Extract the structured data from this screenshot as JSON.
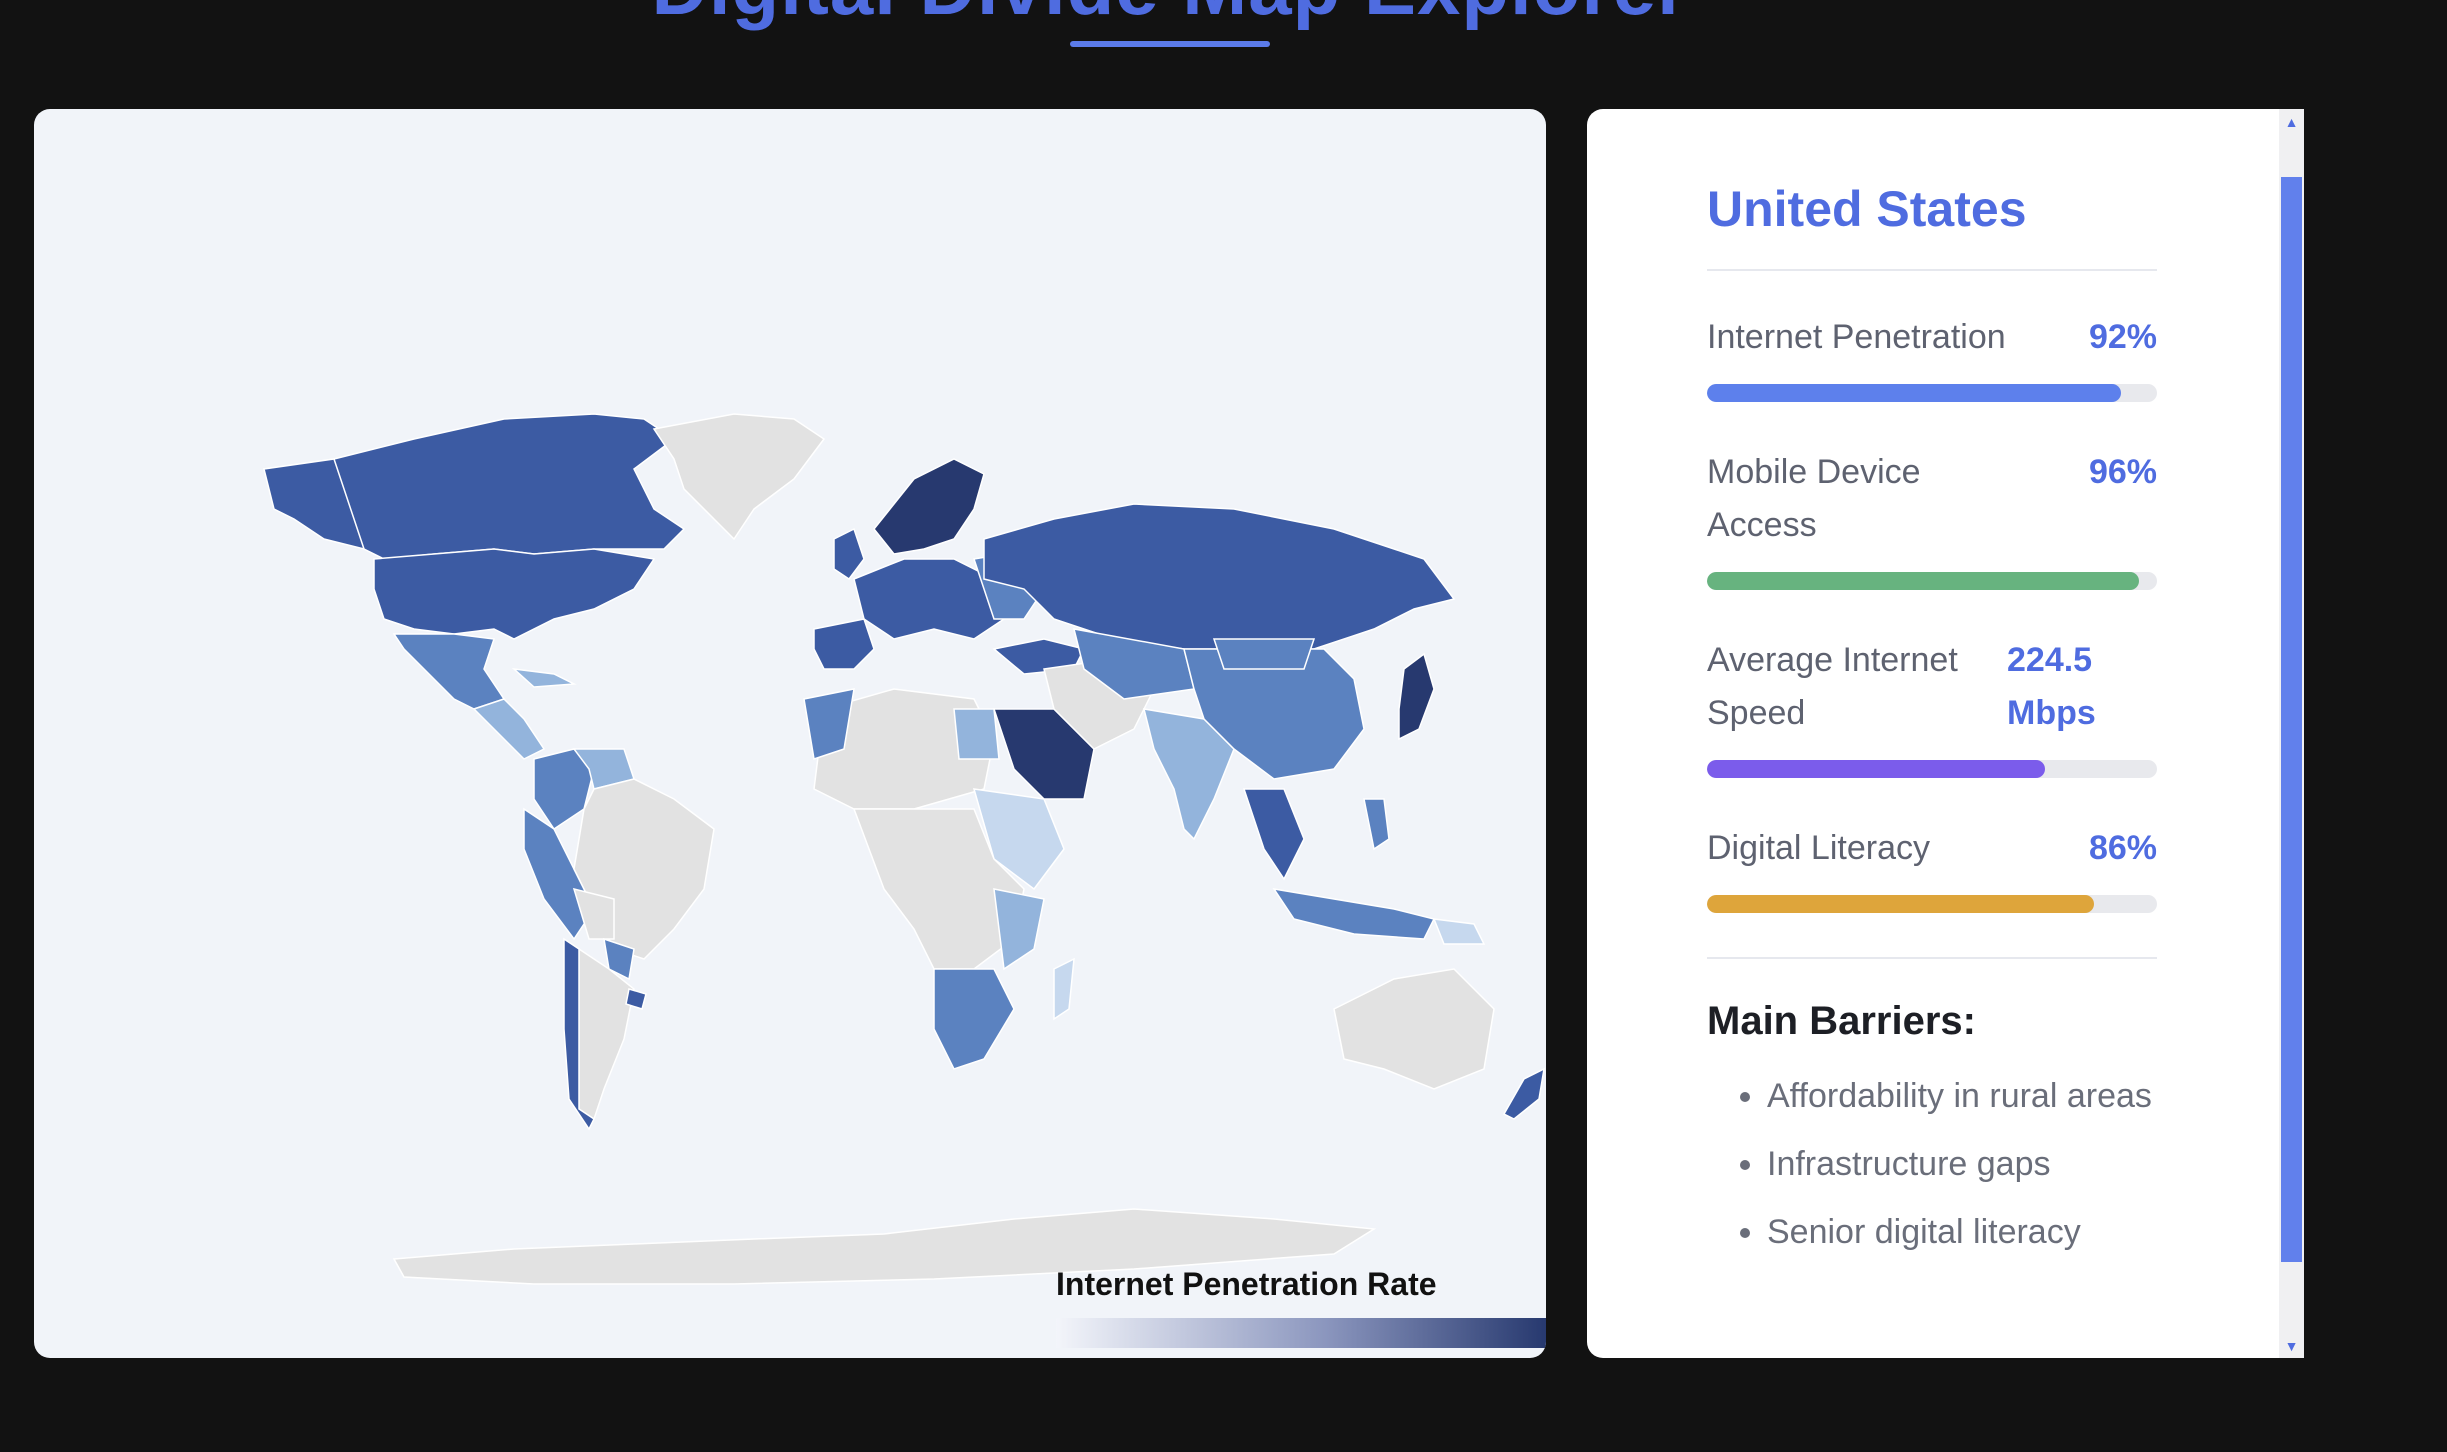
{
  "page": {
    "title": "Digital Divide Map Explorer"
  },
  "legend": {
    "title": "Internet Penetration Rate"
  },
  "colors": {
    "highest": "#27396f",
    "high": "#3c5ba3",
    "mid": "#5b82c0",
    "low": "#93b4dc",
    "lowest": "#c6d8ee",
    "nodata": "#e2e2e2"
  },
  "country": {
    "name": "United States",
    "metrics": [
      {
        "label": "Internet Penetration",
        "value": "92%",
        "fill": 0.92,
        "color": "#5d80ec"
      },
      {
        "label": "Mobile Device Access",
        "value": "96%",
        "fill": 0.96,
        "color": "#67b37f"
      },
      {
        "label": "Average Internet Speed",
        "value": "224.5 Mbps",
        "fill": 0.75,
        "color": "#7b5ceb"
      },
      {
        "label": "Digital Literacy",
        "value": "86%",
        "fill": 0.86,
        "color": "#dea53b"
      }
    ],
    "barriers_title": "Main Barriers:",
    "barriers": [
      "Affordability in rural areas",
      "Infrastructure gaps",
      "Senior digital literacy"
    ]
  }
}
